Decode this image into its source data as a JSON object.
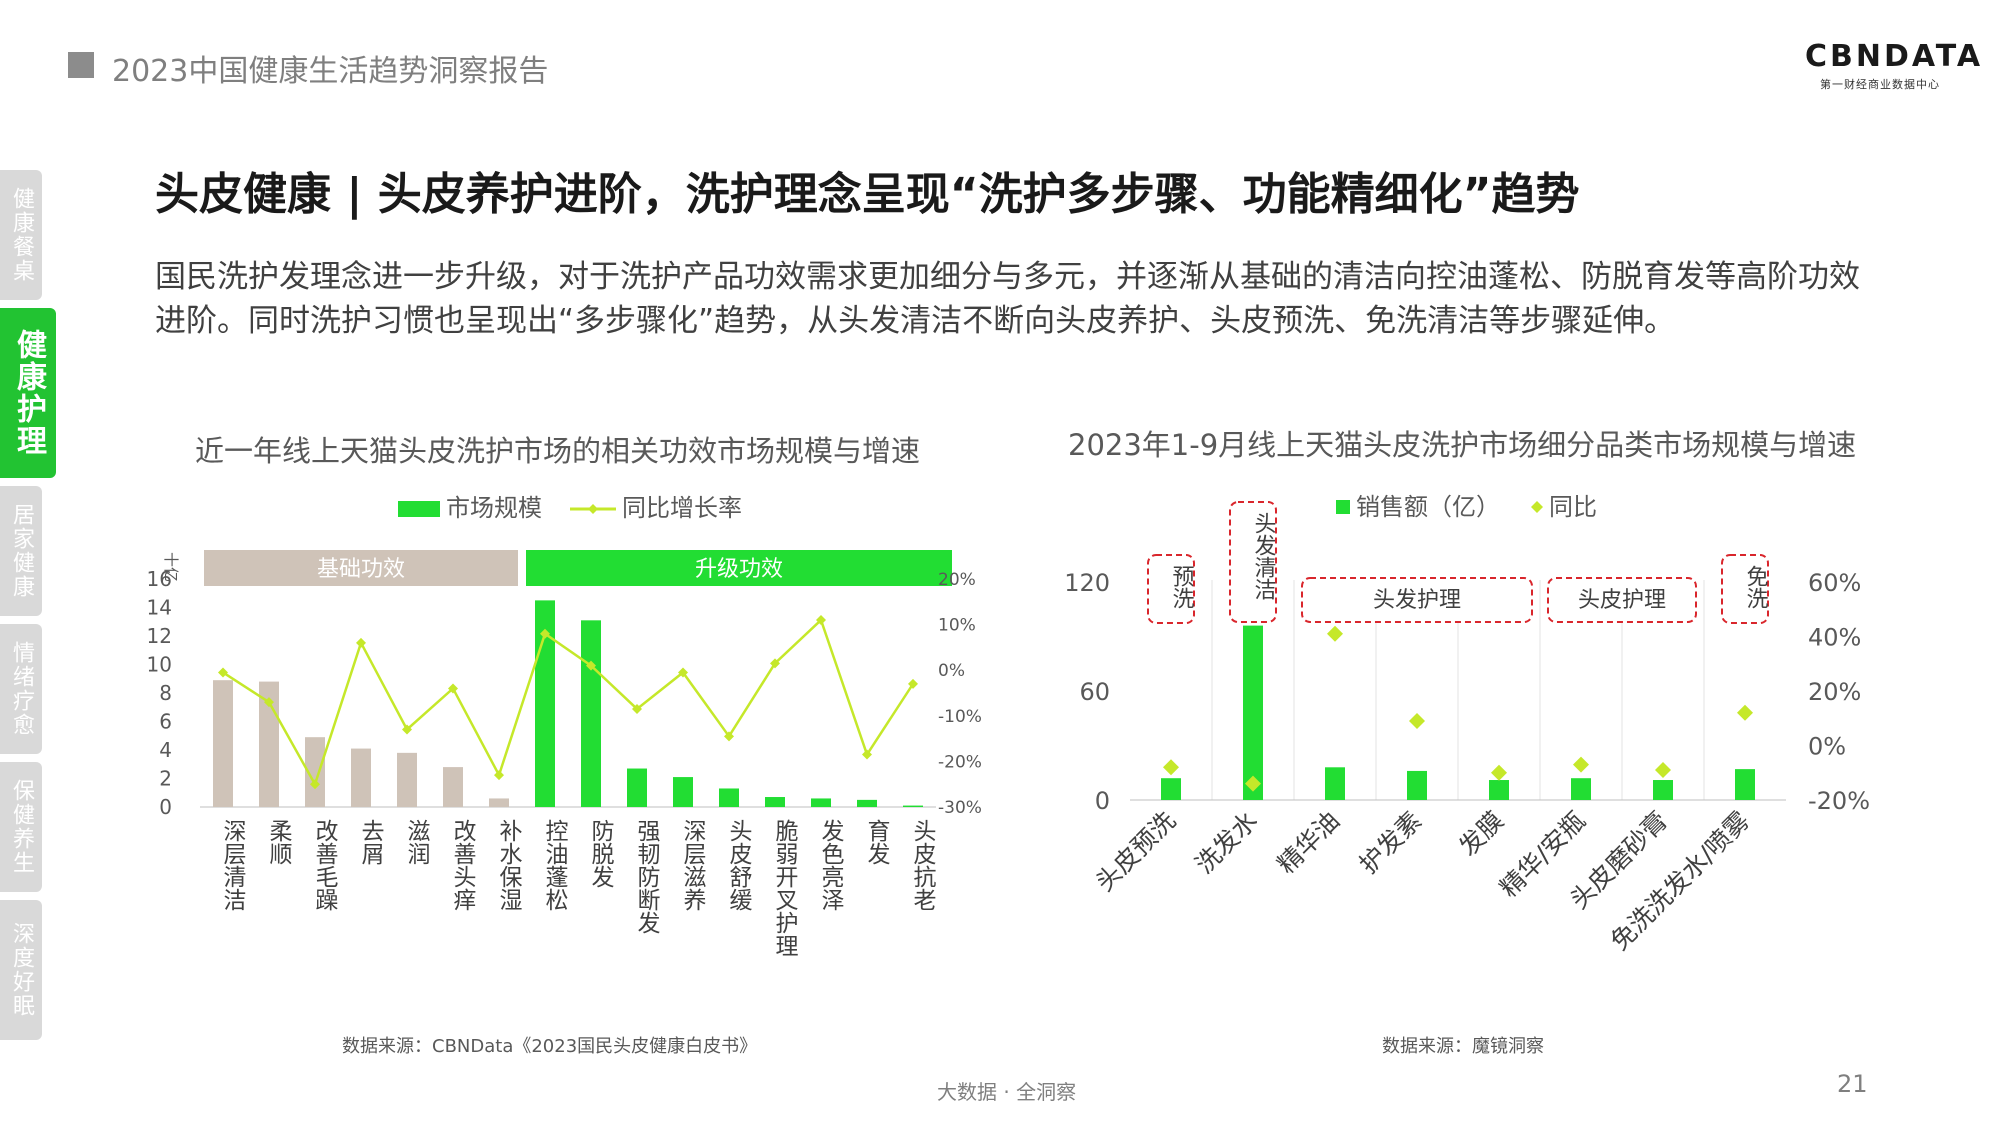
{
  "header": {
    "title": "2023中国健康生活趋势洞察报告"
  },
  "logo": {
    "main": "CBNDATA",
    "sub": "第一财经商业数据中心"
  },
  "sidebar": {
    "items": [
      {
        "label": "健康餐桌",
        "active": false
      },
      {
        "label": "健康护理",
        "active": true
      },
      {
        "label": "居家健康",
        "active": false
      },
      {
        "label": "情绪疗愈",
        "active": false
      },
      {
        "label": "保健养生",
        "active": false
      },
      {
        "label": "深度好眠",
        "active": false
      }
    ]
  },
  "title": "头皮健康 | 头皮养护进阶，洗护理念呈现“洗护多步骤、功能精细化”趋势",
  "description": "国民洗护发理念进一步升级，对于洗护产品功效需求更加细分与多元，并逐渐从基础的清洁向控油蓬松、防脱育发等高阶功效进阶。同时洗护习惯也呈现出“多步骤化”趋势，从头发清洁不断向头皮养护、头皮预洗、免洗清洁等步骤延伸。",
  "colors": {
    "bar_green": "#22dd33",
    "bar_beige": "#cfc3b8",
    "line_yellowgreen": "#c5e82a",
    "accent_green": "#22c332",
    "group_red": "#d9262c"
  },
  "chart_left": {
    "title": "近一年线上天猫头皮洗护市场的相关功效市场规模与增速",
    "source": "数据来源：CBNData《2023国民头皮健康白皮书》"
  },
  "chart_right": {
    "title": "2023年1-9月线上天猫头皮洗护市场细分品类市场规模与增速",
    "source": "数据来源：魔镜洞察"
  },
  "chart_data": [
    {
      "type": "bar",
      "title": "近一年线上天猫头皮洗护市场的相关功效市场规模与增速",
      "ylabel": "十亿",
      "ylim": [
        0,
        16
      ],
      "yticks": [
        0,
        2,
        4,
        6,
        8,
        10,
        12,
        14,
        16
      ],
      "y2lim": [
        -30,
        20
      ],
      "y2ticks": [
        "-30%",
        "-20%",
        "-10%",
        "0%",
        "10%",
        "20%"
      ],
      "legend": [
        "市场规模",
        "同比增长率"
      ],
      "groups": [
        {
          "label": "基础功效",
          "range": [
            0,
            6
          ]
        },
        {
          "label": "升级功效",
          "range": [
            7,
            15
          ]
        }
      ],
      "categories": [
        "深层清洁",
        "柔顺",
        "改善毛躁",
        "去屑",
        "滋润",
        "改善头痒",
        "补水保湿",
        "控油蓬松",
        "防脱发",
        "强韧防断发",
        "深层滋养",
        "头皮舒缓",
        "脆弱开叉护理",
        "发色亮泽",
        "育发",
        "头皮抗老"
      ],
      "series": [
        {
          "name": "市场规模",
          "type": "bar",
          "values": [
            8.9,
            8.8,
            4.9,
            4.1,
            3.8,
            2.8,
            0.6,
            14.5,
            13.1,
            2.7,
            2.1,
            1.3,
            0.7,
            0.6,
            0.5,
            0.1
          ]
        },
        {
          "name": "同比增长率",
          "type": "line",
          "values": [
            -0.5,
            -7,
            -25,
            6,
            -13,
            -4,
            -23,
            8,
            1,
            -8.5,
            -0.5,
            -14.5,
            1.5,
            11,
            -18.5,
            -3
          ]
        }
      ]
    },
    {
      "type": "bar",
      "title": "2023年1-9月线上天猫头皮洗护市场细分品类市场规模与增速",
      "ylim": [
        0,
        120
      ],
      "yticks": [
        0,
        60,
        120
      ],
      "y2lim": [
        -20,
        60
      ],
      "y2ticks": [
        "-20%",
        "0%",
        "20%",
        "40%",
        "60%"
      ],
      "legend": [
        "销售额（亿）",
        "同比"
      ],
      "categories": [
        "头皮预洗",
        "洗发水",
        "精华油",
        "护发素",
        "发膜",
        "精华/安瓶",
        "头皮磨砂膏",
        "免洗洗发水/喷雾"
      ],
      "groups": [
        {
          "label": "预洗",
          "range": [
            0,
            0
          ]
        },
        {
          "label": "头发清洁",
          "range": [
            1,
            1
          ]
        },
        {
          "label": "头发护理",
          "range": [
            2,
            4
          ]
        },
        {
          "label": "头皮护理",
          "range": [
            5,
            6
          ]
        },
        {
          "label": "免洗",
          "range": [
            7,
            7
          ]
        }
      ],
      "series": [
        {
          "name": "销售额（亿）",
          "type": "bar",
          "values": [
            12,
            96,
            18,
            16,
            11,
            12,
            11,
            17
          ]
        },
        {
          "name": "同比",
          "type": "scatter",
          "values": [
            -8,
            -14,
            41,
            9,
            -10,
            -7,
            -9,
            12
          ]
        }
      ]
    }
  ],
  "footer": {
    "center": "大数据 · 全洞察",
    "page": "21"
  }
}
